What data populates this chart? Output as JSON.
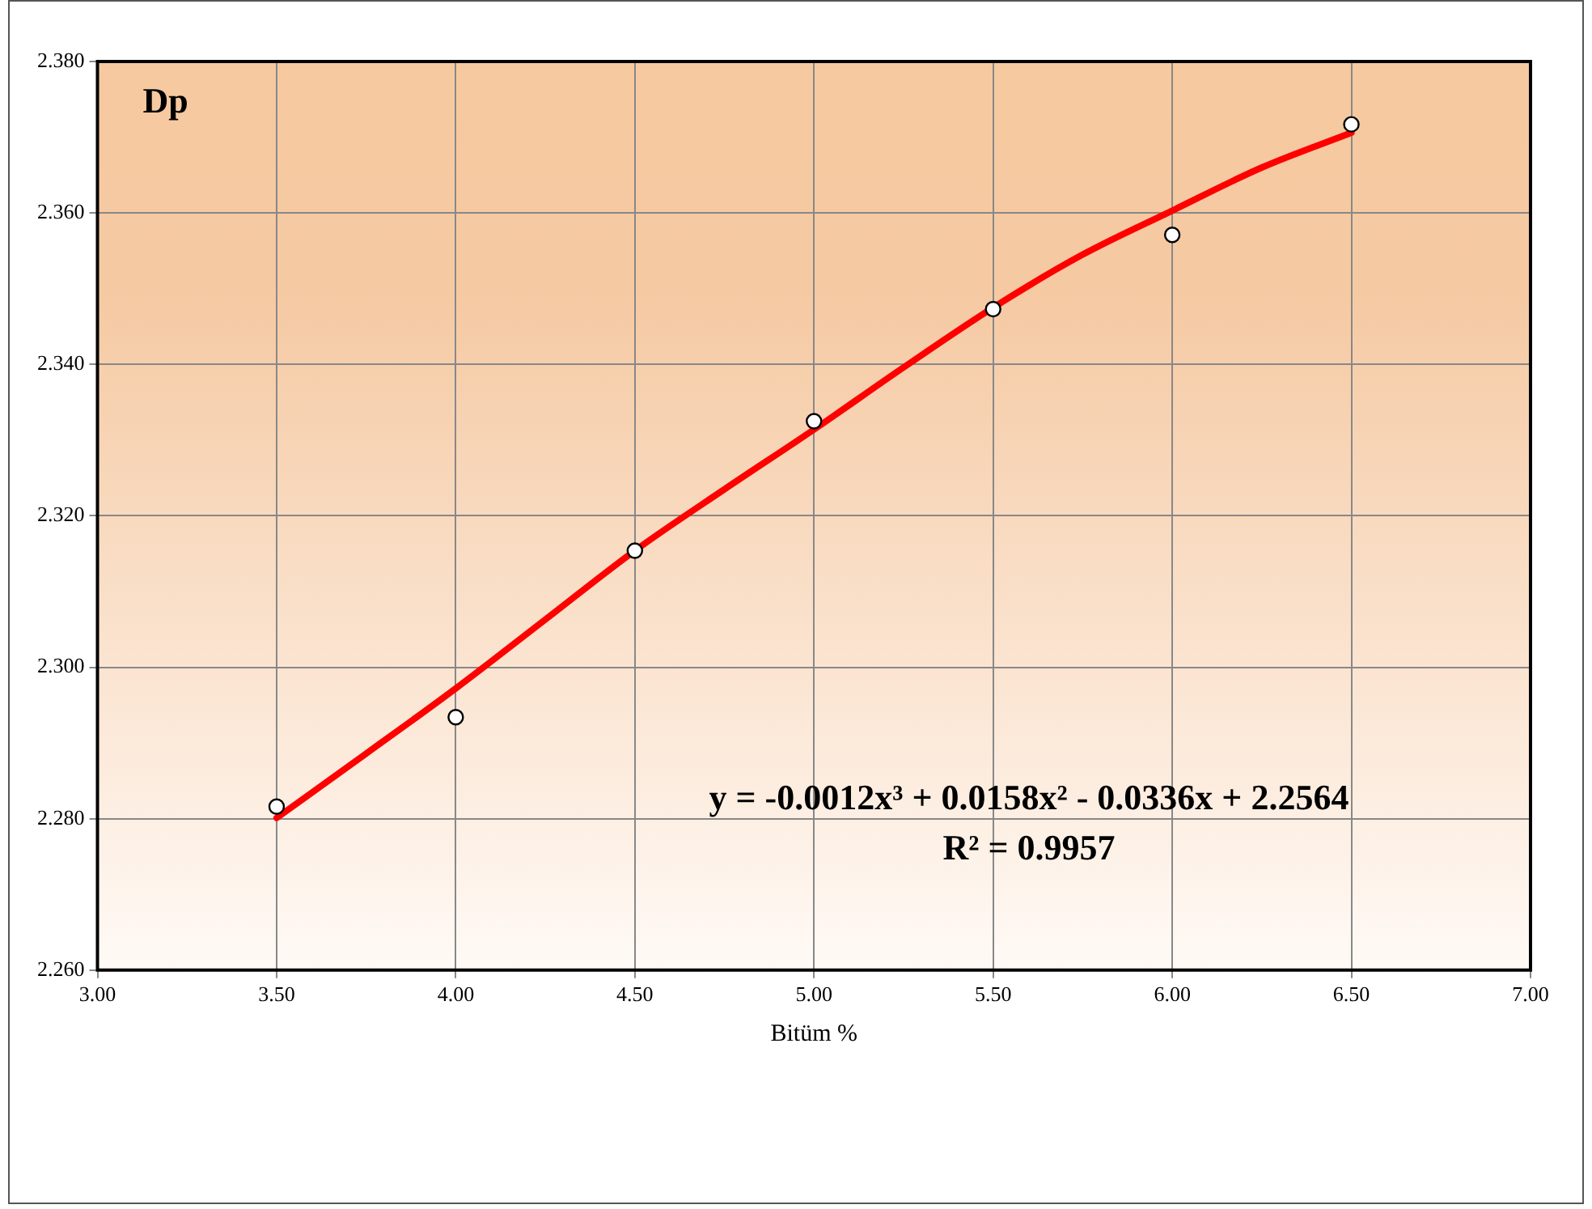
{
  "chart_data": {
    "type": "scatter",
    "xlabel": "Bitüm %",
    "annotations": [
      "Dp",
      "y = -0.0012x³ + 0.0158x² - 0.0336x + 2.2564",
      "R² = 0.9957"
    ],
    "series": [
      {
        "color": "#000000",
        "marker": "circle",
        "x": [
          3.5,
          4.0,
          4.5,
          5.0,
          5.5,
          6.0,
          6.5
        ],
        "values": [
          2.2816,
          2.2934,
          2.3154,
          2.3325,
          2.3473,
          2.3571,
          2.3717
        ]
      },
      {
        "type": "line",
        "color": "#ff0000",
        "marker": "none",
        "x": [
          3.5,
          3.75,
          4.0,
          4.25,
          4.5,
          4.75,
          5.0,
          5.25,
          5.5,
          5.75,
          6.0,
          6.25,
          6.5
        ],
        "values": [
          2.2801,
          2.2886,
          2.2972,
          2.3063,
          2.3154,
          2.3235,
          2.3314,
          2.3396,
          2.3475,
          2.3545,
          2.3603,
          2.366,
          2.3706
        ]
      }
    ],
    "xlim": [
      3.0,
      7.0
    ],
    "xticks": [
      {
        "value": 3.0,
        "label": "3.00"
      },
      {
        "value": 3.5,
        "label": "3.50"
      },
      {
        "value": 4.0,
        "label": "4.00"
      },
      {
        "value": 4.5,
        "label": "4.50"
      },
      {
        "value": 5.0,
        "label": "5.00"
      },
      {
        "value": 5.5,
        "label": "5.50"
      },
      {
        "value": 6.0,
        "label": "6.00"
      },
      {
        "value": 6.5,
        "label": "6.50"
      },
      {
        "value": 7.0,
        "label": "7.00"
      }
    ],
    "ylim": [
      2.26,
      2.38
    ],
    "yticks": [
      {
        "value": 2.26,
        "label": "2.260"
      },
      {
        "value": 2.28,
        "label": "2.280"
      },
      {
        "value": 2.3,
        "label": "2.300"
      },
      {
        "value": 2.32,
        "label": "2.320"
      },
      {
        "value": 2.34,
        "label": "2.340"
      },
      {
        "value": 2.36,
        "label": "2.360"
      },
      {
        "value": 2.38,
        "label": "2.380"
      }
    ],
    "grid": true,
    "legend": false,
    "line_style": "solid"
  }
}
